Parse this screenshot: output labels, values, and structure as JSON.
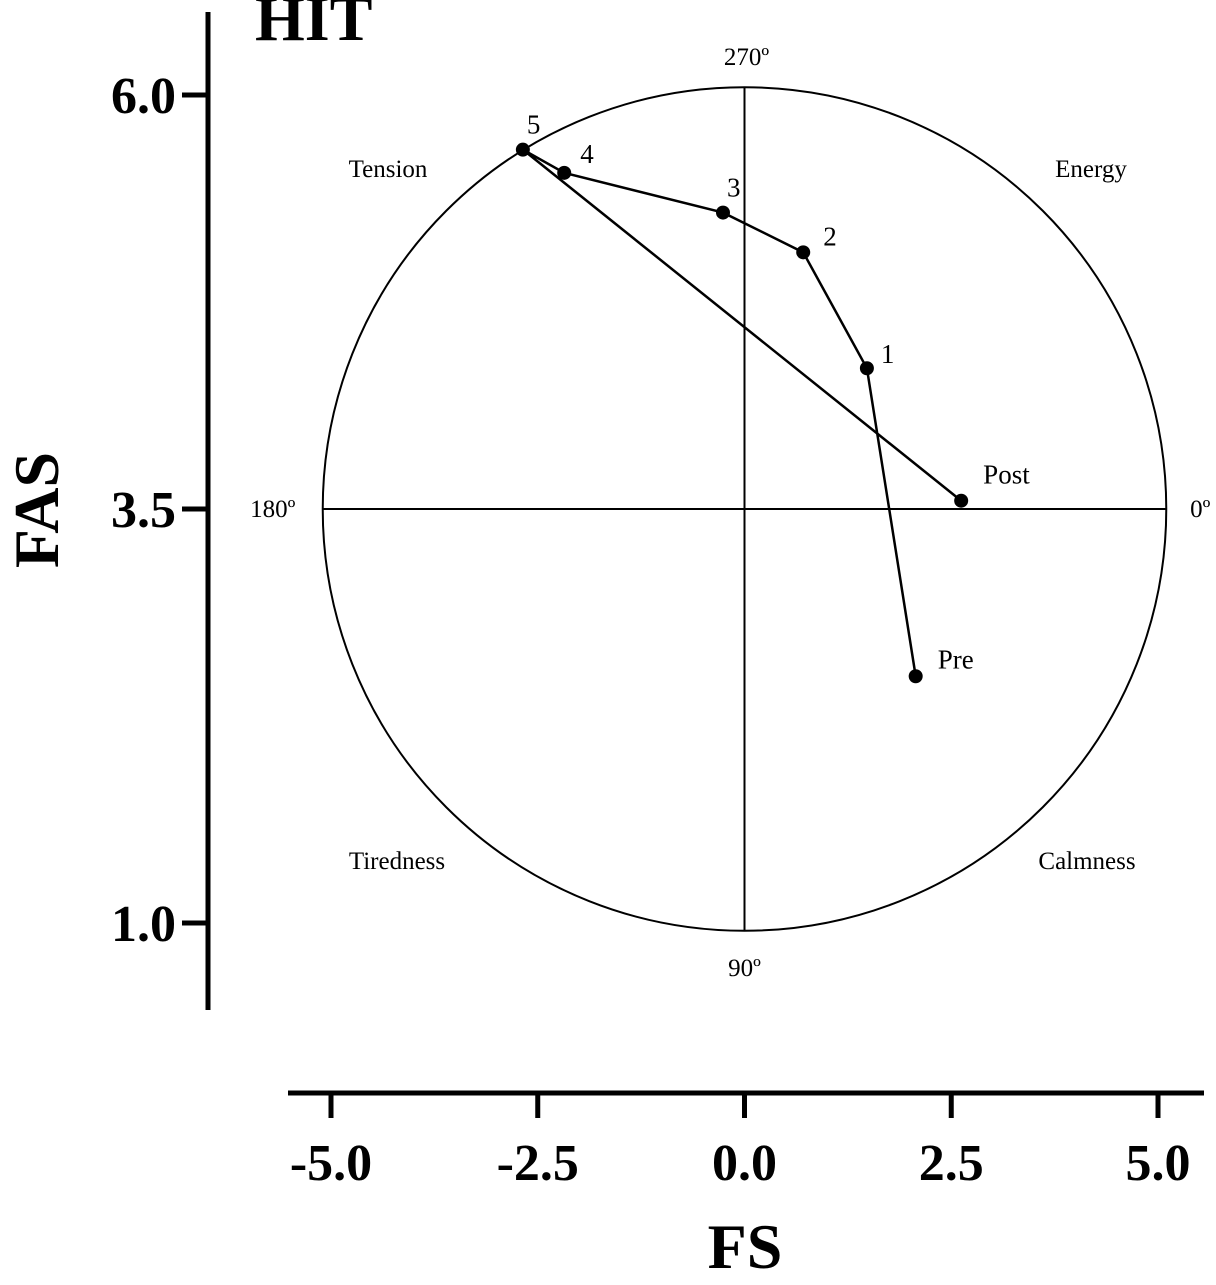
{
  "chart_data": {
    "type": "line",
    "title": "HIT",
    "xlabel": "FS",
    "ylabel": "FAS",
    "xlim": [
      -5.0,
      5.0
    ],
    "ylim": [
      1.0,
      6.0
    ],
    "x_ticks": [
      "-5.0",
      "-2.5",
      "0.0",
      "2.5",
      "5.0"
    ],
    "y_ticks": [
      "6.0",
      "3.5",
      "1.0"
    ],
    "circle": {
      "center_x": 0.0,
      "center_y": 3.5,
      "radius": 5.1
    },
    "angle_labels": {
      "top": "270º",
      "bottom": "90º",
      "left": "180º",
      "right": "0º"
    },
    "quadrant_labels": {
      "top_left": "Tension",
      "top_right": "Energy",
      "bottom_left": "Tiredness",
      "bottom_right": "Calmness"
    },
    "grid": false,
    "legend": "none",
    "series": [
      {
        "points": [
          {
            "label": "Pre",
            "x": 2.07,
            "y": 2.49
          },
          {
            "label": "1",
            "x": 1.48,
            "y": 4.35
          },
          {
            "label": "2",
            "x": 0.71,
            "y": 5.05
          },
          {
            "label": "3",
            "x": -0.26,
            "y": 5.29
          },
          {
            "label": "4",
            "x": -2.18,
            "y": 5.53
          },
          {
            "label": "5",
            "x": -2.68,
            "y": 5.67
          },
          {
            "label": "Post",
            "x": 2.62,
            "y": 3.55
          }
        ]
      }
    ]
  }
}
